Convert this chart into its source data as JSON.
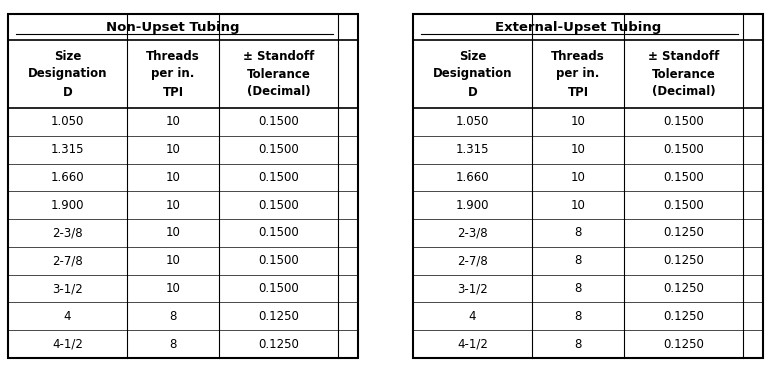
{
  "table1_title": "Non-Upset Tubing",
  "table2_title": "External-Upset Tubing",
  "col_headers_line1": [
    "Size",
    "Threads",
    "± Standoff"
  ],
  "col_headers_line2": [
    "Designation",
    "per in.",
    "Tolerance"
  ],
  "col_headers_line3": [
    "D",
    "TPI",
    "(Decimal)"
  ],
  "table1_rows": [
    [
      "1.050",
      "10",
      "0.1500"
    ],
    [
      "1.315",
      "10",
      "0.1500"
    ],
    [
      "1.660",
      "10",
      "0.1500"
    ],
    [
      "1.900",
      "10",
      "0.1500"
    ],
    [
      "2-3/8",
      "10",
      "0.1500"
    ],
    [
      "2-7/8",
      "10",
      "0.1500"
    ],
    [
      "3-1/2",
      "10",
      "0.1500"
    ],
    [
      "4",
      "8",
      "0.1250"
    ],
    [
      "4-1/2",
      "8",
      "0.1250"
    ]
  ],
  "table2_rows": [
    [
      "1.050",
      "10",
      "0.1500"
    ],
    [
      "1.315",
      "10",
      "0.1500"
    ],
    [
      "1.660",
      "10",
      "0.1500"
    ],
    [
      "1.900",
      "10",
      "0.1500"
    ],
    [
      "2-3/8",
      "8",
      "0.1250"
    ],
    [
      "2-7/8",
      "8",
      "0.1250"
    ],
    [
      "3-1/2",
      "8",
      "0.1250"
    ],
    [
      "4",
      "8",
      "0.1250"
    ],
    [
      "4-1/2",
      "8",
      "0.1250"
    ]
  ],
  "bg_color": "#ffffff",
  "border_color": "#000000",
  "text_color": "#000000",
  "header_fontsize": 8.5,
  "data_fontsize": 8.5,
  "title_fontsize": 9.5,
  "fig_width": 7.78,
  "fig_height": 3.72,
  "dpi": 100
}
